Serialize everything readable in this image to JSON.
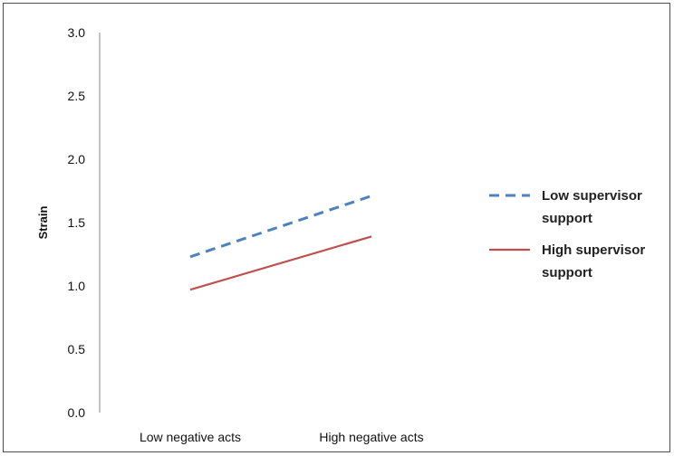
{
  "chart_data": {
    "type": "line",
    "title": "",
    "xlabel": "",
    "ylabel": "Strain",
    "ylim": [
      0.0,
      3.0
    ],
    "yticks": [
      "0.0",
      "0.5",
      "1.0",
      "1.5",
      "2.0",
      "2.5",
      "3.0"
    ],
    "categories": [
      "Low negative acts",
      "High negative acts"
    ],
    "grid": false,
    "legend_position": "right",
    "series": [
      {
        "name_lines": [
          "Low supervisor",
          "support"
        ],
        "values": [
          1.23,
          1.71
        ],
        "color": "#4f81bd",
        "style": "dashed"
      },
      {
        "name_lines": [
          "High supervisor",
          "support"
        ],
        "values": [
          0.97,
          1.39
        ],
        "color": "#c0504d",
        "style": "solid"
      }
    ]
  }
}
